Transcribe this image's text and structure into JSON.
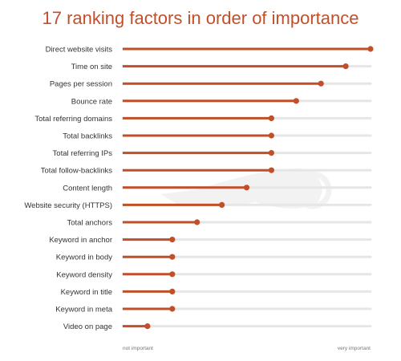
{
  "chart_data": {
    "type": "bar",
    "title": "17 ranking factors in order of importance",
    "categories": [
      "Direct website visits",
      "Time on site",
      "Pages per session",
      "Bounce rate",
      "Total referring domains",
      "Total backlinks",
      "Total referring IPs",
      "Total follow-backlinks",
      "Content length",
      "Website security (HTTPS)",
      "Total anchors",
      "Keyword in anchor",
      "Keyword in body",
      "Keyword density",
      "Keyword in title",
      "Keyword in meta",
      "Video on page"
    ],
    "values": [
      100,
      90,
      80,
      70,
      60,
      60,
      60,
      60,
      50,
      40,
      30,
      20,
      20,
      20,
      20,
      20,
      10
    ],
    "xlim": [
      0,
      100
    ],
    "xlabel_min": "not important",
    "xlabel_max": "very important",
    "grid": false,
    "legend": "none",
    "colors": {
      "title": "#c1502a",
      "bar": "#c1502a",
      "dot": "#c1502a",
      "track": "#e6e6e6",
      "label": "#333333",
      "axis_label": "#777777",
      "watermark": "#f2f2f2"
    }
  }
}
